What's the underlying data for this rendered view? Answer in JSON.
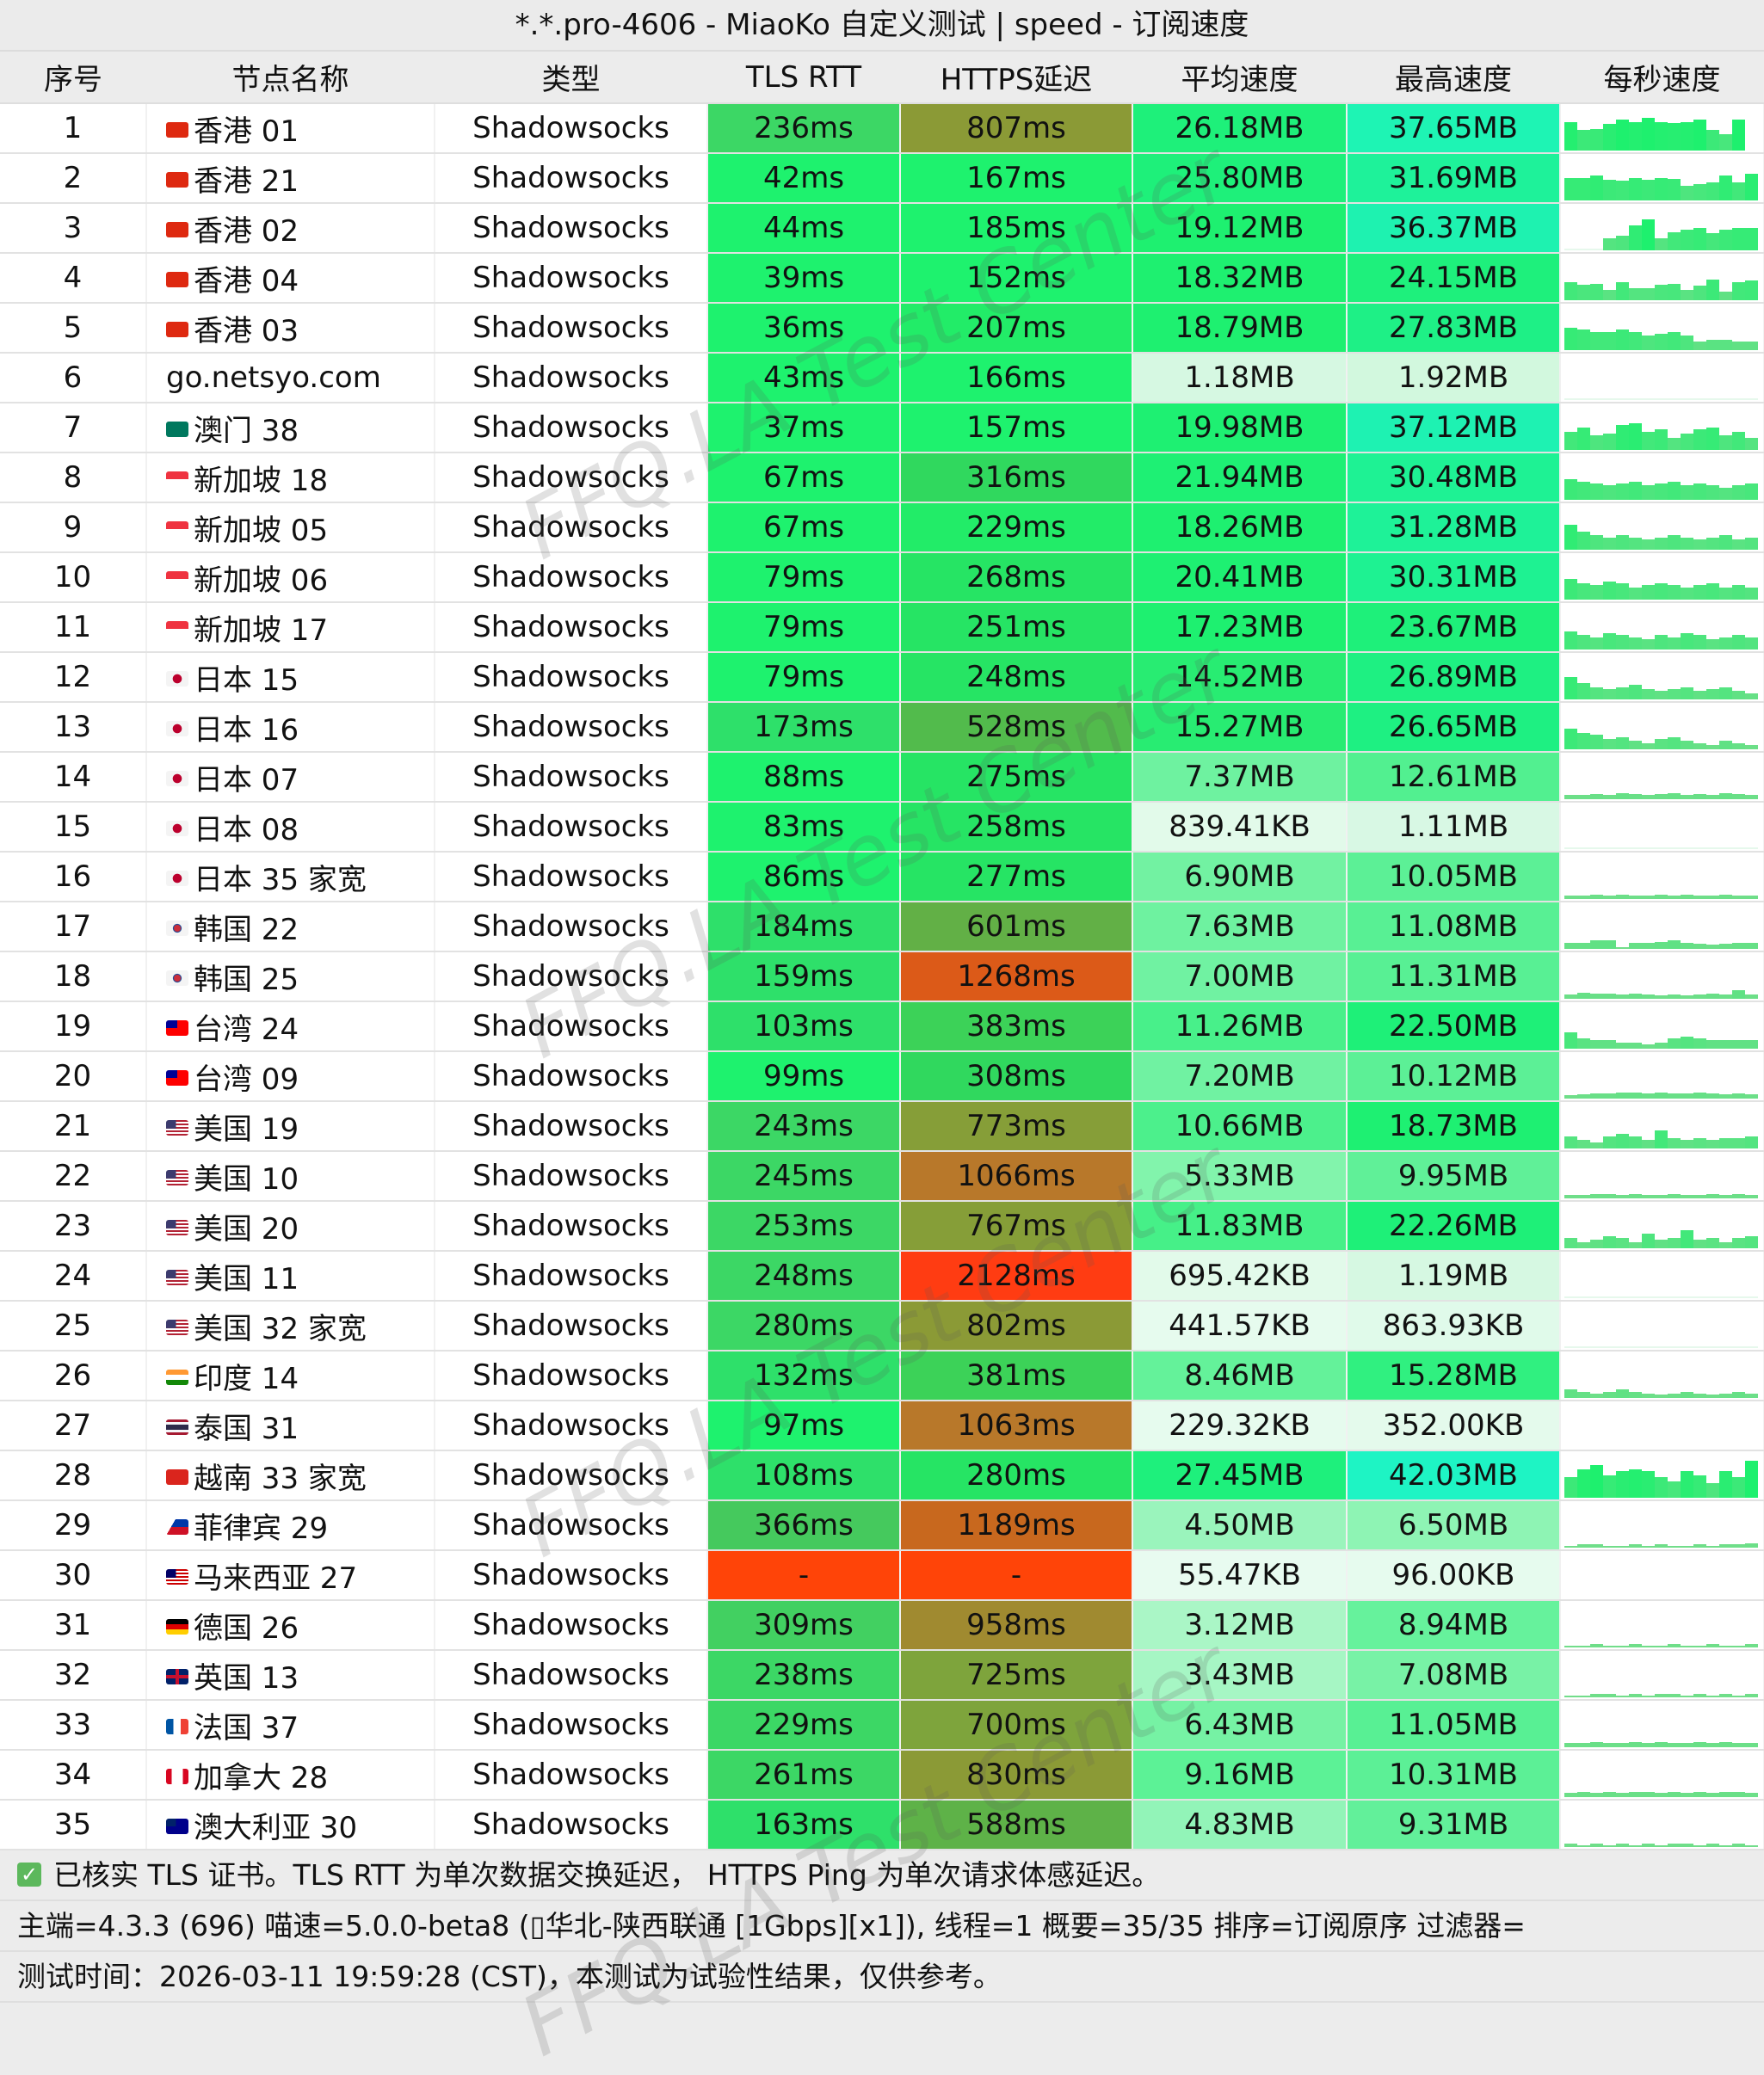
{
  "window_title": "*.*.pro-4606 - MiaoKo 自定义测试 | speed - 订阅速度",
  "columns": [
    "序号",
    "节点名称",
    "类型",
    "TLS RTT",
    "HTTPS延迟",
    "平均速度",
    "最高速度",
    "每秒速度"
  ],
  "rows": [
    {
      "n": "1",
      "flag": "hk",
      "name": "香港 01",
      "type": "Shadowsocks",
      "tls": "236ms",
      "tls_c": "#3cd765",
      "https": "807ms",
      "https_c": "#8b9a36",
      "avg": "26.18MB",
      "avg_c": "#1ef07a",
      "max": "37.65MB",
      "max_c": "#1ef4b4",
      "spark": [
        28,
        20,
        21,
        26,
        30,
        28,
        32,
        28,
        27,
        28,
        30,
        20,
        16,
        30
      ]
    },
    {
      "n": "2",
      "flag": "hk",
      "name": "香港 21",
      "type": "Shadowsocks",
      "tls": "42ms",
      "tls_c": "#1ef26e",
      "https": "167ms",
      "https_c": "#1ef26e",
      "avg": "25.80MB",
      "avg_c": "#1ef07a",
      "max": "31.69MB",
      "max_c": "#1ef29a",
      "spark": [
        22,
        22,
        24,
        20,
        19,
        22,
        20,
        22,
        21,
        14,
        16,
        18,
        24,
        18,
        26
      ]
    },
    {
      "n": "3",
      "flag": "hk",
      "name": "香港 02",
      "type": "Shadowsocks",
      "tls": "44ms",
      "tls_c": "#1ef26e",
      "https": "185ms",
      "https_c": "#1ef26e",
      "avg": "19.12MB",
      "avg_c": "#1ef070",
      "max": "36.37MB",
      "max_c": "#1ef2b0",
      "spark": [
        1,
        1,
        1,
        12,
        14,
        24,
        30,
        12,
        18,
        20,
        22,
        17,
        20,
        22,
        22
      ]
    },
    {
      "n": "4",
      "flag": "hk",
      "name": "香港 04",
      "type": "Shadowsocks",
      "tls": "39ms",
      "tls_c": "#1ef26e",
      "https": "152ms",
      "https_c": "#1ef26e",
      "avg": "18.32MB",
      "avg_c": "#1ef070",
      "max": "24.15MB",
      "max_c": "#1ef07c",
      "spark": [
        18,
        15,
        16,
        10,
        18,
        12,
        12,
        15,
        16,
        10,
        14,
        20,
        8,
        18,
        19
      ]
    },
    {
      "n": "5",
      "flag": "hk",
      "name": "香港 03",
      "type": "Shadowsocks",
      "tls": "36ms",
      "tls_c": "#1ef26e",
      "https": "207ms",
      "https_c": "#22ec68",
      "avg": "18.79MB",
      "avg_c": "#1ef070",
      "max": "27.83MB",
      "max_c": "#1ef086",
      "spark": [
        22,
        20,
        18,
        18,
        20,
        18,
        14,
        16,
        18,
        14,
        8,
        10,
        10,
        8,
        8
      ]
    },
    {
      "n": "6",
      "flag": "",
      "name": "go.netsyo.com",
      "type": "Shadowsocks",
      "tls": "43ms",
      "tls_c": "#1ef26e",
      "https": "166ms",
      "https_c": "#1ef26e",
      "avg": "1.18MB",
      "avg_c": "#d6f8e2",
      "max": "1.92MB",
      "max_c": "#d2f8de",
      "spark": [
        1,
        1,
        1,
        1,
        1,
        1,
        1,
        1,
        1,
        1,
        1,
        1,
        1,
        1,
        1
      ]
    },
    {
      "n": "7",
      "flag": "mo",
      "name": "澳门 38",
      "type": "Shadowsocks",
      "tls": "37ms",
      "tls_c": "#1ef26e",
      "https": "157ms",
      "https_c": "#1ef26e",
      "avg": "19.98MB",
      "avg_c": "#1ef072",
      "max": "37.12MB",
      "max_c": "#1ef2b2",
      "spark": [
        18,
        22,
        14,
        16,
        24,
        26,
        18,
        20,
        12,
        16,
        20,
        22,
        14,
        18,
        12
      ]
    },
    {
      "n": "8",
      "flag": "sg",
      "name": "新加坡 18",
      "type": "Shadowsocks",
      "tls": "67ms",
      "tls_c": "#1ef26e",
      "https": "316ms",
      "https_c": "#30d85e",
      "avg": "21.94MB",
      "avg_c": "#1ef074",
      "max": "30.48MB",
      "max_c": "#1ef294",
      "spark": [
        20,
        18,
        16,
        14,
        16,
        18,
        14,
        16,
        18,
        14,
        16,
        14,
        12,
        14,
        16
      ]
    },
    {
      "n": "9",
      "flag": "sg",
      "name": "新加坡 05",
      "type": "Shadowsocks",
      "tls": "67ms",
      "tls_c": "#1ef26e",
      "https": "229ms",
      "https_c": "#22ec68",
      "avg": "18.26MB",
      "avg_c": "#1ef070",
      "max": "31.28MB",
      "max_c": "#1ef298",
      "spark": [
        24,
        18,
        14,
        12,
        14,
        12,
        10,
        12,
        14,
        12,
        10,
        12,
        14,
        10,
        12
      ]
    },
    {
      "n": "10",
      "flag": "sg",
      "name": "新加坡 06",
      "type": "Shadowsocks",
      "tls": "79ms",
      "tls_c": "#1ef26e",
      "https": "268ms",
      "https_c": "#26e464",
      "avg": "20.41MB",
      "avg_c": "#1ef072",
      "max": "30.31MB",
      "max_c": "#1ef292",
      "spark": [
        20,
        16,
        14,
        18,
        16,
        12,
        14,
        16,
        14,
        12,
        14,
        16,
        12,
        14,
        12
      ]
    },
    {
      "n": "11",
      "flag": "sg",
      "name": "新加坡 17",
      "type": "Shadowsocks",
      "tls": "79ms",
      "tls_c": "#1ef26e",
      "https": "251ms",
      "https_c": "#26e464",
      "avg": "17.23MB",
      "avg_c": "#1ef070",
      "max": "23.67MB",
      "max_c": "#1ef07a",
      "spark": [
        18,
        14,
        12,
        16,
        14,
        12,
        10,
        14,
        12,
        16,
        14,
        10,
        12,
        14,
        12
      ]
    },
    {
      "n": "12",
      "flag": "jp",
      "name": "日本 15",
      "type": "Shadowsocks",
      "tls": "79ms",
      "tls_c": "#1ef26e",
      "https": "248ms",
      "https_c": "#26e464",
      "avg": "14.52MB",
      "avg_c": "#28ec72",
      "max": "26.89MB",
      "max_c": "#1ef082",
      "spark": [
        22,
        16,
        12,
        10,
        12,
        14,
        10,
        8,
        10,
        12,
        8,
        10,
        12,
        8,
        6
      ]
    },
    {
      "n": "13",
      "flag": "jp",
      "name": "日本 16",
      "type": "Shadowsocks",
      "tls": "173ms",
      "tls_c": "#2ee06a",
      "https": "528ms",
      "https_c": "#52bb4c",
      "avg": "15.27MB",
      "avg_c": "#28ec72",
      "max": "26.65MB",
      "max_c": "#1ef082",
      "spark": [
        20,
        16,
        14,
        10,
        12,
        8,
        6,
        10,
        12,
        8,
        6,
        4,
        8,
        6,
        4
      ]
    },
    {
      "n": "14",
      "flag": "jp",
      "name": "日本 07",
      "type": "Shadowsocks",
      "tls": "88ms",
      "tls_c": "#1ef26e",
      "https": "275ms",
      "https_c": "#26e464",
      "avg": "7.37MB",
      "avg_c": "#6ef2a0",
      "max": "12.61MB",
      "max_c": "#52f090",
      "spark": [
        4,
        4,
        5,
        4,
        6,
        5,
        4,
        5,
        6,
        4,
        5,
        4,
        6,
        5,
        4
      ]
    },
    {
      "n": "15",
      "flag": "jp",
      "name": "日本 08",
      "type": "Shadowsocks",
      "tls": "83ms",
      "tls_c": "#1ef26e",
      "https": "258ms",
      "https_c": "#26e464",
      "avg": "839.41KB",
      "avg_c": "#e2faea",
      "max": "1.11MB",
      "max_c": "#d8f8e4",
      "spark": [
        1,
        1,
        1,
        1,
        1,
        1,
        1,
        1,
        1,
        1,
        1,
        1,
        1,
        1,
        1
      ]
    },
    {
      "n": "16",
      "flag": "jp",
      "name": "日本 35 家宽",
      "type": "Shadowsocks",
      "tls": "86ms",
      "tls_c": "#1ef26e",
      "https": "277ms",
      "https_c": "#26e464",
      "avg": "6.90MB",
      "avg_c": "#72f2a2",
      "max": "10.05MB",
      "max_c": "#5cf096",
      "spark": [
        3,
        3,
        4,
        3,
        4,
        3,
        3,
        4,
        3,
        4,
        3,
        3,
        4,
        3,
        3
      ]
    },
    {
      "n": "17",
      "flag": "kr",
      "name": "韩国 22",
      "type": "Shadowsocks",
      "tls": "184ms",
      "tls_c": "#2ee06a",
      "https": "601ms",
      "https_c": "#62b046",
      "avg": "7.63MB",
      "avg_c": "#6ef2a0",
      "max": "11.08MB",
      "max_c": "#58f094",
      "spark": [
        6,
        6,
        8,
        8,
        2,
        6,
        6,
        7,
        8,
        6,
        5,
        4,
        5,
        6,
        6
      ]
    },
    {
      "n": "18",
      "flag": "kr",
      "name": "韩国 25",
      "type": "Shadowsocks",
      "tls": "159ms",
      "tls_c": "#2ee06a",
      "https": "1268ms",
      "https_c": "#dc5a18",
      "avg": "7.00MB",
      "avg_c": "#70f2a2",
      "max": "11.31MB",
      "max_c": "#58f094",
      "spark": [
        4,
        6,
        5,
        5,
        4,
        5,
        4,
        3,
        4,
        3,
        4,
        5,
        4,
        8,
        4
      ]
    },
    {
      "n": "19",
      "flag": "tw",
      "name": "台湾 24",
      "type": "Shadowsocks",
      "tls": "103ms",
      "tls_c": "#2ee06a",
      "https": "383ms",
      "https_c": "#3cd258",
      "avg": "11.26MB",
      "avg_c": "#48f08a",
      "max": "22.50MB",
      "max_c": "#1ef078",
      "spark": [
        16,
        10,
        8,
        8,
        6,
        6,
        4,
        6,
        10,
        12,
        10,
        8,
        8,
        8,
        8
      ]
    },
    {
      "n": "20",
      "flag": "tw",
      "name": "台湾 09",
      "type": "Shadowsocks",
      "tls": "99ms",
      "tls_c": "#1ef26e",
      "https": "308ms",
      "https_c": "#30d85e",
      "avg": "7.20MB",
      "avg_c": "#70f2a2",
      "max": "10.12MB",
      "max_c": "#5cf096",
      "spark": [
        3,
        4,
        5,
        5,
        6,
        6,
        5,
        6,
        5,
        5,
        6,
        5,
        4,
        5,
        4
      ]
    },
    {
      "n": "21",
      "flag": "us",
      "name": "美国 19",
      "type": "Shadowsocks",
      "tls": "243ms",
      "tls_c": "#3cd765",
      "https": "773ms",
      "https_c": "#869e38",
      "avg": "10.66MB",
      "avg_c": "#4cf08c",
      "max": "18.73MB",
      "max_c": "#1ef072",
      "spark": [
        12,
        8,
        6,
        12,
        14,
        12,
        8,
        18,
        10,
        8,
        10,
        8,
        10,
        10,
        12
      ]
    },
    {
      "n": "22",
      "flag": "us",
      "name": "美国 10",
      "type": "Shadowsocks",
      "tls": "245ms",
      "tls_c": "#3cd765",
      "https": "1066ms",
      "https_c": "#b8782a",
      "avg": "5.33MB",
      "avg_c": "#82f4ac",
      "max": "9.95MB",
      "max_c": "#60f098",
      "spark": [
        3,
        3,
        4,
        4,
        3,
        4,
        3,
        3,
        4,
        3,
        3,
        4,
        3,
        4,
        3
      ]
    },
    {
      "n": "23",
      "flag": "us",
      "name": "美国 20",
      "type": "Shadowsocks",
      "tls": "253ms",
      "tls_c": "#3cd765",
      "https": "767ms",
      "https_c": "#869e38",
      "avg": "11.83MB",
      "avg_c": "#46f088",
      "max": "22.26MB",
      "max_c": "#1ef078",
      "spark": [
        10,
        6,
        8,
        12,
        10,
        6,
        14,
        8,
        10,
        18,
        8,
        10,
        6,
        10,
        12
      ]
    },
    {
      "n": "24",
      "flag": "us",
      "name": "美国 11",
      "type": "Shadowsocks",
      "tls": "248ms",
      "tls_c": "#3cd765",
      "https": "2128ms",
      "https_c": "#ff3c12",
      "avg": "695.42KB",
      "avg_c": "#e2faea",
      "max": "1.19MB",
      "max_c": "#d6f8e2",
      "spark": [
        1,
        1,
        1,
        1,
        1,
        1,
        1,
        1,
        1,
        1,
        1,
        1,
        1,
        1,
        1
      ]
    },
    {
      "n": "25",
      "flag": "us",
      "name": "美国 32 家宽",
      "type": "Shadowsocks",
      "tls": "280ms",
      "tls_c": "#3cd765",
      "https": "802ms",
      "https_c": "#8b9a36",
      "avg": "441.57KB",
      "avg_c": "#e6fbee",
      "max": "863.93KB",
      "max_c": "#e0faea",
      "spark": [
        1,
        1,
        1,
        1,
        1,
        1,
        1,
        1,
        1,
        1,
        1,
        1,
        1,
        1,
        1
      ]
    },
    {
      "n": "26",
      "flag": "in",
      "name": "印度 14",
      "type": "Shadowsocks",
      "tls": "132ms",
      "tls_c": "#2ee06a",
      "https": "381ms",
      "https_c": "#3cd258",
      "avg": "8.46MB",
      "avg_c": "#64f29a",
      "max": "15.28MB",
      "max_c": "#30f080",
      "spark": [
        8,
        6,
        4,
        6,
        8,
        6,
        4,
        3,
        4,
        6,
        4,
        3,
        4,
        6,
        4
      ]
    },
    {
      "n": "27",
      "flag": "th",
      "name": "泰国 31",
      "type": "Shadowsocks",
      "tls": "97ms",
      "tls_c": "#1ef26e",
      "https": "1063ms",
      "https_c": "#b8782a",
      "avg": "229.32KB",
      "avg_c": "#e6fbee",
      "max": "352.00KB",
      "max_c": "#e4faec",
      "spark": []
    },
    {
      "n": "28",
      "flag": "vn",
      "name": "越南 33 家宽",
      "type": "Shadowsocks",
      "tls": "108ms",
      "tls_c": "#2ee06a",
      "https": "280ms",
      "https_c": "#26e464",
      "avg": "27.45MB",
      "avg_c": "#1ef07c",
      "max": "42.03MB",
      "max_c": "#1ef4c4",
      "spark": [
        20,
        28,
        32,
        22,
        26,
        28,
        26,
        20,
        16,
        26,
        22,
        14,
        26,
        20,
        36
      ]
    },
    {
      "n": "29",
      "flag": "ph",
      "name": "菲律宾 29",
      "type": "Shadowsocks",
      "tls": "366ms",
      "tls_c": "#45c95d",
      "https": "1189ms",
      "https_c": "#c8681e",
      "avg": "4.50MB",
      "avg_c": "#9af4bc",
      "max": "6.50MB",
      "max_c": "#8ef4b4",
      "spark": [
        2,
        3,
        3,
        2,
        2,
        3,
        2,
        3,
        2,
        2,
        3,
        2,
        3,
        3,
        4
      ]
    },
    {
      "n": "30",
      "flag": "my",
      "name": "马来西亚 27",
      "type": "Shadowsocks",
      "tls": "-",
      "tls_c": "#ff4408",
      "https": "-",
      "https_c": "#ff4408",
      "avg": "55.47KB",
      "avg_c": "#e8fbf0",
      "max": "96.00KB",
      "max_c": "#e6fbee",
      "spark": []
    },
    {
      "n": "31",
      "flag": "de",
      "name": "德国 26",
      "type": "Shadowsocks",
      "tls": "309ms",
      "tls_c": "#42d061",
      "https": "958ms",
      "https_c": "#a08a30",
      "avg": "3.12MB",
      "avg_c": "#aaf6c6",
      "max": "8.94MB",
      "max_c": "#66f29c",
      "spark": [
        2,
        2,
        3,
        2,
        2,
        3,
        2,
        2,
        3,
        2,
        2,
        3,
        2,
        2,
        3
      ]
    },
    {
      "n": "32",
      "flag": "gb",
      "name": "英国 13",
      "type": "Shadowsocks",
      "tls": "238ms",
      "tls_c": "#3cd765",
      "https": "725ms",
      "https_c": "#7ea43c",
      "avg": "3.43MB",
      "avg_c": "#a6f6c4",
      "max": "7.08MB",
      "max_c": "#78f2a6",
      "spark": [
        2,
        2,
        3,
        3,
        2,
        3,
        2,
        3,
        3,
        2,
        3,
        2,
        3,
        2,
        3
      ]
    },
    {
      "n": "33",
      "flag": "fr",
      "name": "法国 37",
      "type": "Shadowsocks",
      "tls": "229ms",
      "tls_c": "#3cd765",
      "https": "700ms",
      "https_c": "#7ea43c",
      "avg": "6.43MB",
      "avg_c": "#76f2a4",
      "max": "11.05MB",
      "max_c": "#58f094",
      "spark": [
        4,
        4,
        5,
        4,
        4,
        5,
        4,
        5,
        4,
        4,
        5,
        4,
        5,
        4,
        4
      ]
    },
    {
      "n": "34",
      "flag": "ca",
      "name": "加拿大 28",
      "type": "Shadowsocks",
      "tls": "261ms",
      "tls_c": "#3cd765",
      "https": "830ms",
      "https_c": "#8b9a36",
      "avg": "9.16MB",
      "avg_c": "#5cf296",
      "max": "10.31MB",
      "max_c": "#5cf096",
      "spark": [
        4,
        5,
        4,
        5,
        4,
        5,
        5,
        4,
        5,
        4,
        5,
        4,
        5,
        5,
        4
      ]
    },
    {
      "n": "35",
      "flag": "au",
      "name": "澳大利亚 30",
      "type": "Shadowsocks",
      "tls": "163ms",
      "tls_c": "#2ee06a",
      "https": "588ms",
      "https_c": "#5eb248",
      "avg": "4.83MB",
      "avg_c": "#92f4b8",
      "max": "9.31MB",
      "max_c": "#62f09a",
      "spark": [
        3,
        2,
        3,
        2,
        3,
        2,
        3,
        2,
        3,
        3,
        2,
        3,
        2,
        3,
        2
      ]
    }
  ],
  "footer": {
    "line1": "已核实 TLS 证书。TLS RTT 为单次数据交换延迟， HTTPS Ping 为单次请求体感延迟。",
    "line2": "主端=4.3.3 (696) 喵速=5.0.0-beta8 (▯华北-陕西联通 [1Gbps][x1]), 线程=1 概要=35/35 排序=订阅原序 过滤器=",
    "line3": "测试时间：2026-03-11 19:59:28 (CST)，本测试为试验性结果，仅供参考。"
  },
  "watermark": "FFQ.LA Test Center",
  "colors": {
    "spark_bar": "#2bea7a",
    "check": "#5cb85c"
  }
}
